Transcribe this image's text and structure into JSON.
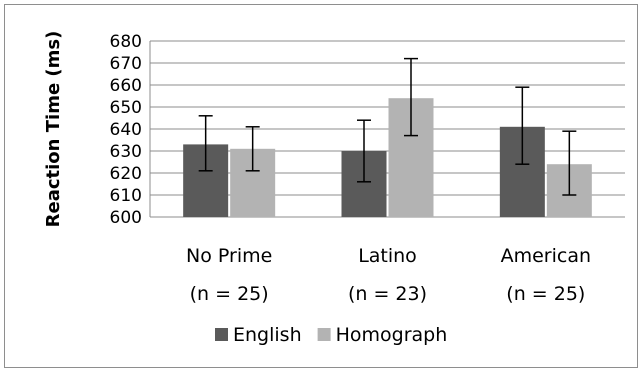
{
  "chart_data": {
    "type": "bar",
    "title": "",
    "xlabel": "",
    "ylabel": "Reaction Time (ms)",
    "ylim": [
      600,
      680
    ],
    "yticks": [
      600,
      610,
      620,
      630,
      640,
      650,
      660,
      670,
      680
    ],
    "grid": true,
    "legend_position": "bottom",
    "categories": [
      [
        "No Prime",
        "(n = 25)"
      ],
      [
        "Latino",
        "(n = 23)"
      ],
      [
        "American",
        "(n = 25)"
      ]
    ],
    "series": [
      {
        "name": "English",
        "color": "#5a5a5a",
        "values": [
          633,
          630,
          641
        ],
        "error": [
          [
            621,
            646
          ],
          [
            616,
            644
          ],
          [
            624,
            659
          ]
        ]
      },
      {
        "name": "Homograph",
        "color": "#b3b3b3",
        "values": [
          631,
          654,
          624
        ],
        "error": [
          [
            621,
            641
          ],
          [
            637,
            672
          ],
          [
            610,
            639
          ]
        ]
      }
    ]
  }
}
